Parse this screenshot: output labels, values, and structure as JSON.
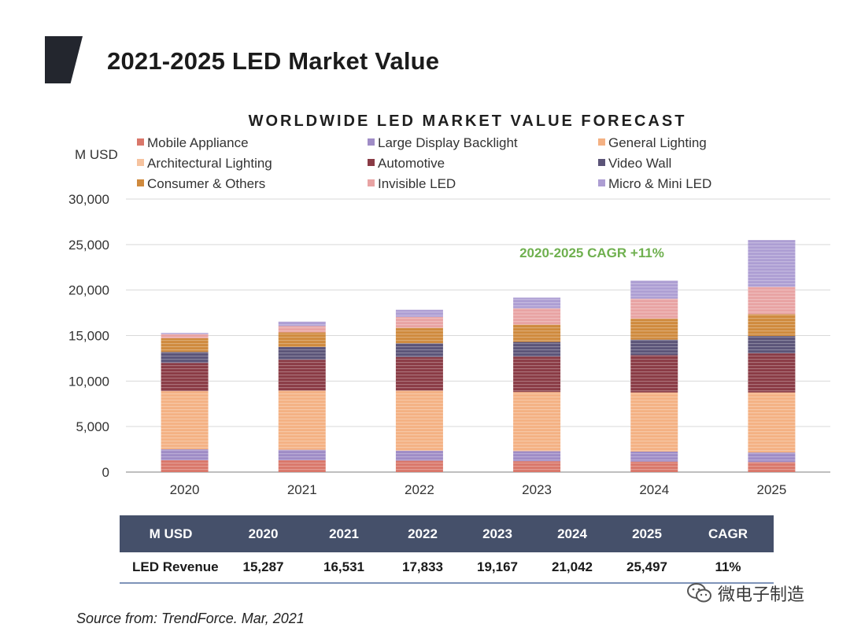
{
  "page": {
    "title": "2021-2025 LED Market Value",
    "source": "Source from: TrendForce. Mar, 2021",
    "watermark": "微电子制造"
  },
  "colors": {
    "grid": "#d9d9d9",
    "axis": "#bfbfbf",
    "header_bg": "#45506a",
    "cagr_text": "#6fb04f",
    "accent": "#23262e"
  },
  "chart_data": {
    "type": "bar",
    "stacked": true,
    "title": "WORLDWIDE LED MARKET VALUE FORECAST",
    "ylabel": "M USD",
    "xlabel": "",
    "ylim": [
      0,
      30000
    ],
    "yticks": [
      0,
      5000,
      10000,
      15000,
      20000,
      25000,
      30000
    ],
    "ytick_labels": [
      "0",
      "5,000",
      "10,000",
      "15,000",
      "20,000",
      "25,000",
      "30,000"
    ],
    "grid": true,
    "legend_position": "top",
    "categories": [
      "2020",
      "2021",
      "2022",
      "2023",
      "2024",
      "2025"
    ],
    "annotation": "2020-2025 CAGR +11%",
    "series": [
      {
        "name": "Mobile Appliance",
        "color": "#d9776a",
        "values": [
          1300,
          1300,
          1250,
          1200,
          1150,
          1100
        ]
      },
      {
        "name": "Large Display Backlight",
        "color": "#9f8cc6",
        "values": [
          1200,
          1150,
          1100,
          1100,
          1100,
          1050
        ]
      },
      {
        "name": "General Lighting",
        "color": "#f4b183",
        "values": [
          6400,
          6500,
          6600,
          6500,
          6500,
          6600
        ]
      },
      {
        "name": "Architectural Lighting",
        "color": "#f6c39f",
        "values": [
          0,
          0,
          0,
          0,
          0,
          0
        ]
      },
      {
        "name": "Automotive",
        "color": "#8a3b45",
        "values": [
          3100,
          3400,
          3700,
          3900,
          4100,
          4300
        ]
      },
      {
        "name": "Video Wall",
        "color": "#5b5478",
        "values": [
          1200,
          1400,
          1500,
          1600,
          1700,
          1900
        ]
      },
      {
        "name": "Consumer & Others",
        "color": "#cf8a3d",
        "values": [
          1500,
          1600,
          1700,
          1900,
          2300,
          2400
        ]
      },
      {
        "name": "Invisible LED",
        "color": "#e8a3a3",
        "values": [
          450,
          700,
          1200,
          1800,
          2200,
          3000
        ]
      },
      {
        "name": "Micro & Mini LED",
        "color": "#ad9ed3",
        "values": [
          137,
          481,
          783,
          1167,
          1992,
          5147
        ]
      }
    ],
    "totals": [
      15287,
      16531,
      17833,
      19167,
      21042,
      25497
    ]
  },
  "table": {
    "headers": [
      "M USD",
      "2020",
      "2021",
      "2022",
      "2023",
      "2024",
      "2025",
      "CAGR"
    ],
    "row_label": "LED Revenue",
    "values": [
      "15,287",
      "16,531",
      "17,833",
      "19,167",
      "21,042",
      "25,497",
      "11%"
    ]
  }
}
